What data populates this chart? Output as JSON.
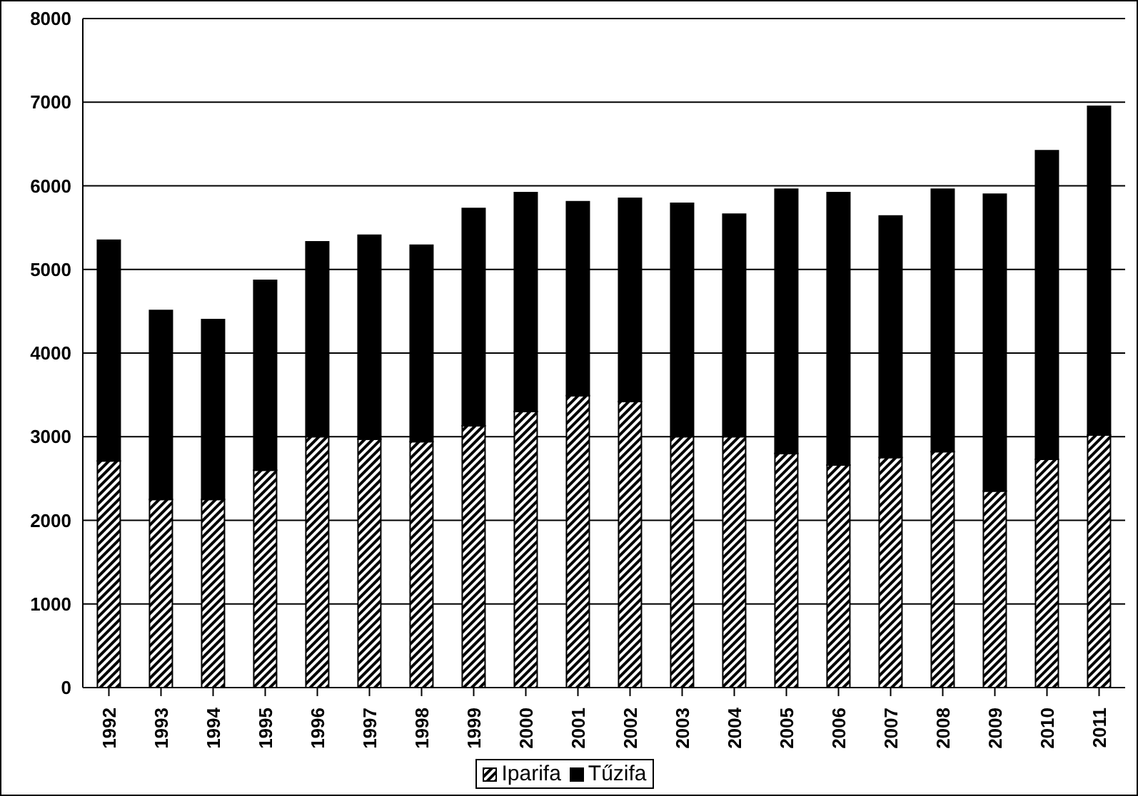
{
  "chart_data": {
    "type": "bar",
    "stacked": true,
    "categories": [
      "1992",
      "1993",
      "1994",
      "1995",
      "1996",
      "1997",
      "1998",
      "1999",
      "2000",
      "2001",
      "2002",
      "2003",
      "2004",
      "2005",
      "2006",
      "2007",
      "2008",
      "2009",
      "2010",
      "2011"
    ],
    "series": [
      {
        "name": "Iparifa",
        "color": "#000000",
        "values": [
          2710,
          2250,
          2250,
          2600,
          3000,
          2970,
          2940,
          3130,
          3300,
          3490,
          3420,
          3000,
          3000,
          2800,
          2660,
          2750,
          2820,
          2350,
          2730,
          3020
        ]
      },
      {
        "name": "Tűzifa",
        "color": "#000000",
        "values": [
          2640,
          2260,
          2150,
          2270,
          2330,
          2440,
          2350,
          2600,
          2620,
          2320,
          2430,
          2790,
          2660,
          3160,
          3260,
          2890,
          3140,
          3550,
          3690,
          3930
        ]
      }
    ],
    "ylim": [
      0,
      8000
    ],
    "yticks": [
      0,
      1000,
      2000,
      3000,
      4000,
      5000,
      6000,
      7000,
      8000
    ],
    "grid": "y",
    "legend": "bottom"
  }
}
